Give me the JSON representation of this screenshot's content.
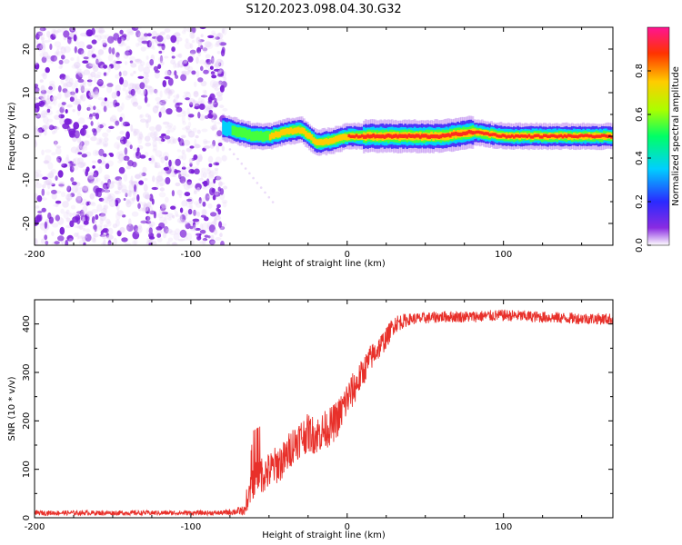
{
  "title": "S120.2023.098.04.30.G32",
  "colors": {
    "snr_line": "#e8302a",
    "axis": "#000000",
    "scatter_low": "#e6d2f7",
    "scatter_high": "#7b1fd8",
    "colormap": [
      "#ffffff",
      "#8a2be2",
      "#2a2aff",
      "#00cfff",
      "#00ff66",
      "#aaff00",
      "#ffcc00",
      "#ff3300",
      "#ff1493"
    ]
  },
  "chart_data": [
    {
      "type": "heatmap",
      "xlabel": "Height of straight line (km)",
      "ylabel": "Frequency (Hz)",
      "xlim": [
        -200,
        170
      ],
      "ylim": [
        -25,
        25
      ],
      "x_ticks": [
        "-200",
        "-100",
        "0",
        "100"
      ],
      "y_ticks": [
        "20",
        "10",
        "0",
        "-10",
        "-20"
      ],
      "colorbar": {
        "label": "Normalized spectral amplitude",
        "range": [
          0,
          1
        ],
        "ticks": [
          "0.0",
          "0.2",
          "0.4",
          "0.6",
          "0.8"
        ]
      },
      "noise_region_x": [
        -200,
        -78
      ],
      "noise_amplitude_range": [
        0.02,
        0.15
      ],
      "tone_track": {
        "x": [
          -80,
          -70,
          -60,
          -50,
          -40,
          -30,
          -20,
          -10,
          0,
          20,
          40,
          60,
          80,
          100,
          120,
          140,
          170
        ],
        "freq": [
          2,
          1,
          0,
          0,
          1,
          1.5,
          -1.5,
          -1,
          0,
          0,
          0,
          0,
          1,
          0,
          0,
          0,
          0
        ],
        "amplitude": [
          0.45,
          0.55,
          0.65,
          0.7,
          0.75,
          0.8,
          0.8,
          0.8,
          0.85,
          0.9,
          0.9,
          0.9,
          0.9,
          0.85,
          0.9,
          0.9,
          0.9
        ]
      }
    },
    {
      "type": "line",
      "xlabel": "Height of straight line (km)",
      "ylabel": "SNR (10 * v/v)",
      "xlim": [
        -200,
        170
      ],
      "ylim": [
        0,
        450
      ],
      "x_ticks": [
        "-200",
        "-100",
        "0",
        "100"
      ],
      "y_ticks": [
        "0",
        "100",
        "200",
        "300",
        "400"
      ],
      "series": [
        {
          "x": [
            -200,
            -150,
            -100,
            -80,
            -65,
            -60,
            -55,
            -50,
            -45,
            -40,
            -35,
            -30,
            -25,
            -20,
            -15,
            -10,
            -5,
            0,
            5,
            10,
            15,
            20,
            25,
            30,
            40,
            50,
            60,
            80,
            100,
            120,
            140,
            170
          ],
          "values": [
            10,
            10,
            10,
            10,
            15,
            80,
            90,
            95,
            110,
            120,
            150,
            165,
            175,
            170,
            180,
            190,
            210,
            245,
            270,
            300,
            330,
            350,
            370,
            400,
            410,
            412,
            415,
            415,
            418,
            415,
            412,
            410
          ],
          "noise": [
            5,
            5,
            5,
            5,
            10,
            40,
            40,
            40,
            40,
            40,
            40,
            40,
            40,
            40,
            40,
            40,
            40,
            40,
            35,
            30,
            28,
            25,
            22,
            20,
            12,
            12,
            12,
            12,
            12,
            12,
            12,
            12
          ]
        }
      ]
    }
  ]
}
